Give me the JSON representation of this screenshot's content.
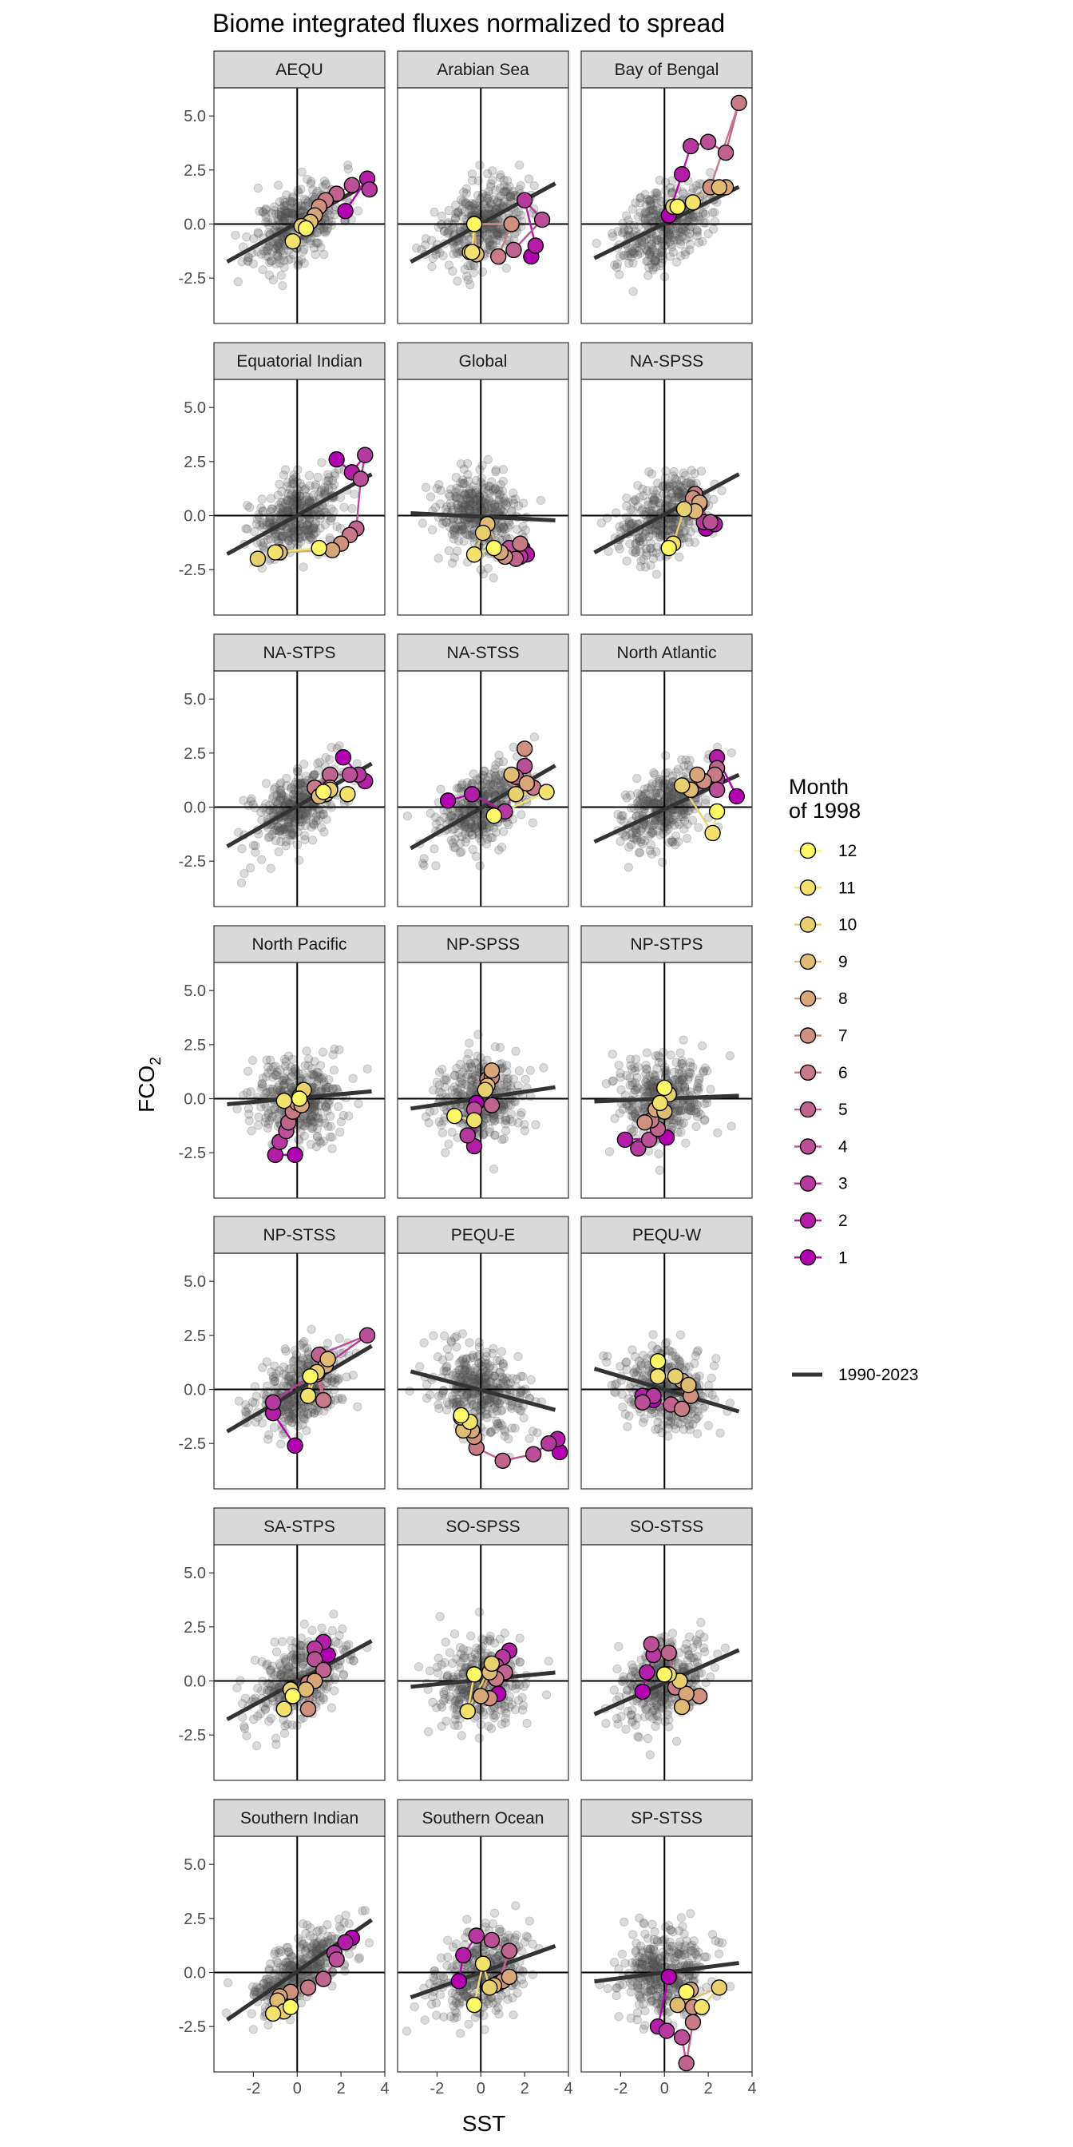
{
  "chart_data": {
    "type": "scatter",
    "title": "Biome integrated fluxes normalized to spread",
    "xlabel": "SST",
    "ylabel": "FCO2",
    "xlim": [
      -3.8,
      4
    ],
    "ylim": [
      -4.6,
      6.3
    ],
    "x_ticks": [
      -2,
      0,
      2,
      4
    ],
    "x_tick_labels": [
      "-2",
      "0",
      "2",
      "4"
    ],
    "y_ticks": [
      5,
      2.5,
      0,
      -2.5
    ],
    "y_tick_labels": [
      "5.0",
      "2.5",
      "0.0",
      "-2.5"
    ],
    "grid": false,
    "legend": {
      "position": "right",
      "title_line1": "Month",
      "title_line2": "of 1998",
      "months": [
        12,
        11,
        10,
        9,
        8,
        7,
        6,
        5,
        4,
        3,
        2,
        1
      ],
      "month_labels": [
        "12",
        "11",
        "10",
        "9",
        "8",
        "7",
        "6",
        "5",
        "4",
        "3",
        "2",
        "1"
      ],
      "trend_label": "1990-2023"
    },
    "colors": {
      "background_points": "#5a5a5a",
      "trend_line": "#333333",
      "strip_fill": "#d9d9d9",
      "month_scale": [
        "#b200b2",
        "#b41da7",
        "#b7389e",
        "#bb4f98",
        "#c0648f",
        "#c87a86",
        "#d0907e",
        "#d7a679",
        "#e0bb73",
        "#e9d06e",
        "#f3e36c",
        "#fef965"
      ]
    },
    "facets": [
      {
        "name": "AEQU",
        "slope": 0.56,
        "intercept": 0.05,
        "seed": 11,
        "bg_corr": 0.45,
        "months": [
          [
            2.2,
            0.6
          ],
          [
            3.2,
            2.1
          ],
          [
            3.3,
            1.6
          ],
          [
            2.5,
            1.8
          ],
          [
            1.8,
            1.4
          ],
          [
            1.3,
            1.1
          ],
          [
            1.0,
            0.8
          ],
          [
            0.8,
            0.4
          ],
          [
            0.6,
            0.1
          ],
          [
            0.2,
            -0.1
          ],
          [
            -0.2,
            -0.8
          ],
          [
            0.4,
            -0.2
          ]
        ]
      },
      {
        "name": "Arabian Sea",
        "slope": 0.55,
        "intercept": 0.01,
        "seed": 23,
        "bg_corr": 0.35,
        "months": [
          [
            2.3,
            -1.5
          ],
          [
            2.5,
            -1.0
          ],
          [
            2.0,
            1.1
          ],
          [
            2.8,
            0.2
          ],
          [
            1.5,
            -1.2
          ],
          [
            0.8,
            -1.5
          ],
          [
            1.4,
            0.0
          ],
          [
            -0.3,
            0.0
          ],
          [
            -0.2,
            -1.4
          ],
          [
            -0.5,
            -1.3
          ],
          [
            -0.4,
            -1.3
          ],
          [
            -0.3,
            0.0
          ]
        ]
      },
      {
        "name": "Bay of Bengal",
        "slope": 0.5,
        "intercept": 0.02,
        "seed": 37,
        "bg_corr": 0.4,
        "months": [
          [
            0.2,
            0.4
          ],
          [
            0.8,
            2.3
          ],
          [
            1.2,
            3.6
          ],
          [
            2.0,
            3.8
          ],
          [
            2.8,
            3.3
          ],
          [
            3.4,
            5.6
          ],
          [
            2.1,
            1.7
          ],
          [
            2.8,
            1.7
          ],
          [
            2.5,
            1.7
          ],
          [
            0.4,
            0.8
          ],
          [
            1.3,
            1.0
          ],
          [
            0.6,
            0.8
          ]
        ]
      },
      {
        "name": "Equatorial Indian",
        "slope": 0.56,
        "intercept": 0.01,
        "seed": 41,
        "bg_corr": 0.4,
        "months": [
          [
            1.8,
            2.6
          ],
          [
            2.5,
            2.0
          ],
          [
            3.1,
            2.8
          ],
          [
            2.9,
            1.7
          ],
          [
            2.7,
            -0.6
          ],
          [
            2.4,
            -0.9
          ],
          [
            2.0,
            -1.3
          ],
          [
            1.6,
            -1.6
          ],
          [
            -0.8,
            -1.7
          ],
          [
            -1.8,
            -2.0
          ],
          [
            -1.0,
            -1.7
          ],
          [
            1.0,
            -1.5
          ]
        ]
      },
      {
        "name": "Global",
        "slope": -0.05,
        "intercept": -0.05,
        "seed": 53,
        "bg_corr": -0.05,
        "months": [
          [
            1.9,
            -1.5
          ],
          [
            2.1,
            -1.8
          ],
          [
            1.8,
            -1.9
          ],
          [
            1.3,
            -1.5
          ],
          [
            1.6,
            -2.0
          ],
          [
            1.8,
            -1.3
          ],
          [
            1.1,
            -1.9
          ],
          [
            0.9,
            -1.7
          ],
          [
            0.3,
            -0.4
          ],
          [
            0.1,
            -0.8
          ],
          [
            -0.3,
            -1.8
          ],
          [
            0.6,
            -1.5
          ]
        ]
      },
      {
        "name": "NA-SPSS",
        "slope": 0.55,
        "intercept": 0.05,
        "seed": 61,
        "bg_corr": 0.4,
        "months": [
          [
            1.9,
            -0.6
          ],
          [
            2.3,
            -0.4
          ],
          [
            1.8,
            -0.3
          ],
          [
            2.1,
            -0.3
          ],
          [
            1.6,
            0.5
          ],
          [
            1.4,
            1.0
          ],
          [
            1.3,
            0.8
          ],
          [
            1.6,
            0.6
          ],
          [
            1.4,
            0.2
          ],
          [
            0.9,
            0.3
          ],
          [
            0.4,
            -1.3
          ],
          [
            0.2,
            -1.5
          ]
        ]
      },
      {
        "name": "NA-STPS",
        "slope": 0.58,
        "intercept": 0.04,
        "seed": 71,
        "bg_corr": 0.55,
        "months": [
          [
            2.1,
            2.3
          ],
          [
            3.1,
            1.2
          ],
          [
            2.8,
            1.5
          ],
          [
            2.4,
            1.5
          ],
          [
            1.5,
            1.5
          ],
          [
            0.8,
            0.9
          ],
          [
            1.5,
            0.9
          ],
          [
            1.3,
            0.6
          ],
          [
            1.0,
            0.5
          ],
          [
            1.5,
            0.8
          ],
          [
            2.3,
            0.6
          ],
          [
            1.2,
            0.7
          ]
        ]
      },
      {
        "name": "NA-STSS",
        "slope": 0.58,
        "intercept": -0.05,
        "seed": 83,
        "bg_corr": 0.45,
        "months": [
          [
            -1.5,
            0.3
          ],
          [
            -0.4,
            0.6
          ],
          [
            1.1,
            -0.2
          ],
          [
            2.0,
            1.9
          ],
          [
            1.6,
            1.4
          ],
          [
            2.4,
            0.9
          ],
          [
            2.0,
            2.7
          ],
          [
            2.1,
            1.1
          ],
          [
            1.4,
            1.5
          ],
          [
            1.6,
            0.6
          ],
          [
            3.0,
            0.7
          ],
          [
            0.6,
            -0.4
          ]
        ]
      },
      {
        "name": "North Atlantic",
        "slope": 0.47,
        "intercept": -0.1,
        "seed": 97,
        "bg_corr": 0.45,
        "months": [
          [
            3.3,
            0.5
          ],
          [
            2.4,
            2.3
          ],
          [
            2.4,
            1.3
          ],
          [
            2.4,
            0.8
          ],
          [
            2.4,
            1.8
          ],
          [
            2.3,
            1.5
          ],
          [
            1.8,
            1.2
          ],
          [
            1.5,
            1.5
          ],
          [
            1.2,
            0.8
          ],
          [
            0.8,
            1.0
          ],
          [
            2.2,
            -1.2
          ],
          [
            2.4,
            -0.2
          ]
        ]
      },
      {
        "name": "North Pacific",
        "slope": 0.09,
        "intercept": 0.03,
        "seed": 101,
        "bg_corr": 0.05,
        "months": [
          [
            -0.1,
            -2.6
          ],
          [
            -1.0,
            -2.6
          ],
          [
            -0.8,
            -2.0
          ],
          [
            -0.5,
            -1.5
          ],
          [
            -0.4,
            -1.1
          ],
          [
            -0.2,
            -0.6
          ],
          [
            0.0,
            -0.2
          ],
          [
            0.2,
            -0.3
          ],
          [
            0.1,
            0.1
          ],
          [
            0.3,
            0.4
          ],
          [
            -0.6,
            -0.1
          ],
          [
            0.1,
            0.0
          ]
        ]
      },
      {
        "name": "NP-SPSS",
        "slope": 0.15,
        "intercept": 0.02,
        "seed": 113,
        "bg_corr": 0.1,
        "months": [
          [
            -0.2,
            -0.2
          ],
          [
            -0.3,
            -2.2
          ],
          [
            -0.6,
            -1.7
          ],
          [
            -0.3,
            -0.5
          ],
          [
            0.5,
            -0.3
          ],
          [
            0.3,
            0.9
          ],
          [
            0.5,
            1.0
          ],
          [
            0.5,
            1.3
          ],
          [
            0.3,
            0.6
          ],
          [
            0.2,
            0.4
          ],
          [
            -0.3,
            -1.0
          ],
          [
            -1.2,
            -0.8
          ]
        ]
      },
      {
        "name": "NP-STPS",
        "slope": 0.04,
        "intercept": 0.0,
        "seed": 127,
        "bg_corr": 0.02,
        "months": [
          [
            0.1,
            -1.8
          ],
          [
            -1.8,
            -1.9
          ],
          [
            -1.2,
            -2.3
          ],
          [
            -0.7,
            -1.9
          ],
          [
            -0.3,
            -1.4
          ],
          [
            -0.6,
            -1.0
          ],
          [
            -0.9,
            -1.1
          ],
          [
            -0.4,
            -0.5
          ],
          [
            0.0,
            -0.6
          ],
          [
            0.2,
            0.2
          ],
          [
            -0.2,
            -0.2
          ],
          [
            0.0,
            0.5
          ]
        ]
      },
      {
        "name": "NP-STSS",
        "slope": 0.6,
        "intercept": -0.03,
        "seed": 131,
        "bg_corr": 0.45,
        "months": [
          [
            -0.1,
            -2.6
          ],
          [
            -1.1,
            -1.1
          ],
          [
            -1.1,
            -0.6
          ],
          [
            3.2,
            2.5
          ],
          [
            1.0,
            1.6
          ],
          [
            1.2,
            -0.5
          ],
          [
            0.9,
            0.7
          ],
          [
            1.3,
            1.1
          ],
          [
            1.4,
            1.4
          ],
          [
            0.9,
            0.8
          ],
          [
            0.5,
            -0.3
          ],
          [
            0.6,
            0.6
          ]
        ]
      },
      {
        "name": "PEQU-E",
        "slope": -0.27,
        "intercept": -0.03,
        "seed": 139,
        "bg_corr": -0.25,
        "months": [
          [
            3.6,
            -2.9
          ],
          [
            3.5,
            -2.3
          ],
          [
            3.1,
            -2.5
          ],
          [
            2.4,
            -3.0
          ],
          [
            1.0,
            -3.3
          ],
          [
            -0.2,
            -2.7
          ],
          [
            -0.3,
            -2.2
          ],
          [
            -0.4,
            -1.9
          ],
          [
            -0.8,
            -1.9
          ],
          [
            -0.9,
            -1.3
          ],
          [
            -0.5,
            -1.5
          ],
          [
            -0.9,
            -1.2
          ]
        ]
      },
      {
        "name": "PEQU-W",
        "slope": -0.3,
        "intercept": 0.0,
        "seed": 149,
        "bg_corr": -0.2,
        "months": [
          [
            -0.5,
            -0.5
          ],
          [
            -1.0,
            -0.3
          ],
          [
            -0.5,
            -0.3
          ],
          [
            -1.0,
            -0.6
          ],
          [
            0.3,
            -0.7
          ],
          [
            0.8,
            -0.9
          ],
          [
            1.2,
            -0.3
          ],
          [
            0.8,
            0.4
          ],
          [
            1.1,
            0.2
          ],
          [
            0.5,
            0.6
          ],
          [
            -0.3,
            0.6
          ],
          [
            -0.3,
            1.3
          ]
        ]
      },
      {
        "name": "SA-STPS",
        "slope": 0.55,
        "intercept": -0.02,
        "seed": 151,
        "bg_corr": 0.5,
        "months": [
          [
            1.4,
            1.2
          ],
          [
            1.2,
            1.8
          ],
          [
            0.8,
            1.5
          ],
          [
            0.8,
            1.0
          ],
          [
            1.2,
            0.5
          ],
          [
            0.5,
            -0.1
          ],
          [
            0.5,
            -1.3
          ],
          [
            0.8,
            0.0
          ],
          [
            0.4,
            -0.4
          ],
          [
            -0.3,
            -0.4
          ],
          [
            -0.6,
            -1.3
          ],
          [
            -0.2,
            -0.7
          ]
        ]
      },
      {
        "name": "SO-SPSS",
        "slope": 0.1,
        "intercept": 0.05,
        "seed": 163,
        "bg_corr": 0.1,
        "months": [
          [
            0.8,
            -0.6
          ],
          [
            1.3,
            1.4
          ],
          [
            1.0,
            1.1
          ],
          [
            0.7,
            0.7
          ],
          [
            1.1,
            0.4
          ],
          [
            0.7,
            0.1
          ],
          [
            0.4,
            -0.8
          ],
          [
            0.0,
            -0.7
          ],
          [
            0.4,
            0.4
          ],
          [
            0.5,
            0.8
          ],
          [
            -0.6,
            -1.4
          ],
          [
            -0.3,
            0.3
          ]
        ]
      },
      {
        "name": "SO-STSS",
        "slope": 0.45,
        "intercept": -0.1,
        "seed": 173,
        "bg_corr": 0.35,
        "months": [
          [
            -1.0,
            -0.5
          ],
          [
            -0.8,
            0.4
          ],
          [
            -0.5,
            1.2
          ],
          [
            -0.6,
            1.7
          ],
          [
            0.2,
            1.3
          ],
          [
            0.5,
            -0.3
          ],
          [
            1.6,
            -0.7
          ],
          [
            1.0,
            -0.6
          ],
          [
            0.8,
            -1.2
          ],
          [
            0.7,
            0.0
          ],
          [
            0.2,
            0.3
          ],
          [
            0.0,
            0.3
          ]
        ]
      },
      {
        "name": "Southern Indian",
        "slope": 0.7,
        "intercept": 0.05,
        "seed": 181,
        "bg_corr": 0.6,
        "months": [
          [
            2.5,
            1.6
          ],
          [
            2.2,
            1.4
          ],
          [
            1.7,
            0.9
          ],
          [
            1.8,
            0.6
          ],
          [
            1.2,
            -0.3
          ],
          [
            0.5,
            -0.7
          ],
          [
            -0.3,
            -0.9
          ],
          [
            -0.8,
            -1.1
          ],
          [
            -0.9,
            -1.3
          ],
          [
            -0.6,
            -1.8
          ],
          [
            -1.1,
            -1.9
          ],
          [
            -0.3,
            -1.6
          ]
        ]
      },
      {
        "name": "Southern Ocean",
        "slope": 0.36,
        "intercept": 0.0,
        "seed": 191,
        "bg_corr": 0.3,
        "months": [
          [
            -1.0,
            -0.4
          ],
          [
            -0.8,
            0.8
          ],
          [
            -0.2,
            1.7
          ],
          [
            0.5,
            1.5
          ],
          [
            1.3,
            1.0
          ],
          [
            0.8,
            -0.5
          ],
          [
            1.0,
            -0.4
          ],
          [
            1.3,
            -0.2
          ],
          [
            0.6,
            -0.6
          ],
          [
            0.4,
            -0.7
          ],
          [
            0.1,
            0.4
          ],
          [
            -0.3,
            -1.5
          ]
        ]
      },
      {
        "name": "SP-STSS",
        "slope": 0.13,
        "intercept": 0.0,
        "seed": 197,
        "bg_corr": 0.05,
        "months": [
          [
            0.2,
            -0.2
          ],
          [
            -0.3,
            -2.5
          ],
          [
            0.1,
            -2.7
          ],
          [
            0.8,
            -3.0
          ],
          [
            1.0,
            -4.2
          ],
          [
            1.3,
            -2.3
          ],
          [
            1.3,
            -1.6
          ],
          [
            1.2,
            -0.8
          ],
          [
            0.6,
            -1.5
          ],
          [
            2.5,
            -0.7
          ],
          [
            1.7,
            -1.6
          ],
          [
            1.0,
            -0.9
          ]
        ]
      }
    ]
  }
}
